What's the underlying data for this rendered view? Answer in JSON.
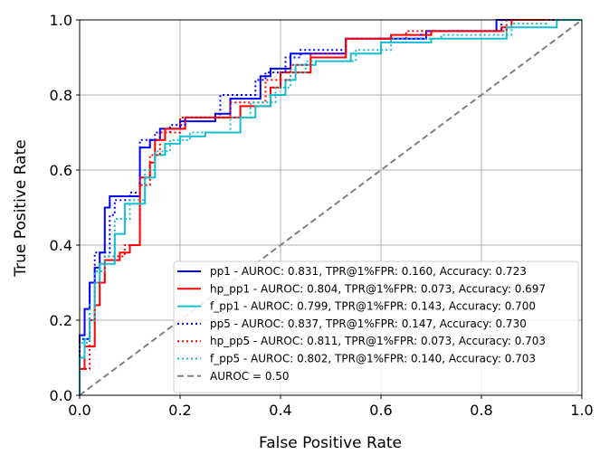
{
  "chart_data": {
    "type": "line",
    "title": "",
    "xlabel": "False Positive Rate",
    "ylabel": "True Positive Rate",
    "xlim": [
      0,
      1
    ],
    "ylim": [
      0,
      1
    ],
    "grid": true,
    "legend_location": "lower-right",
    "xticks": [
      "0.0",
      "0.2",
      "0.4",
      "0.6",
      "0.8",
      "1.0"
    ],
    "yticks": [
      "0.0",
      "0.2",
      "0.4",
      "0.6",
      "0.8",
      "1.0"
    ],
    "series": [
      {
        "name": "pp1 - AUROC: 0.831, TPR@1%FPR: 0.160, Accuracy: 0.723",
        "color": "#0000ff",
        "style": "solid",
        "points": [
          [
            0,
            0
          ],
          [
            0,
            0.16
          ],
          [
            0.01,
            0.16
          ],
          [
            0.01,
            0.23
          ],
          [
            0.02,
            0.23
          ],
          [
            0.02,
            0.3
          ],
          [
            0.03,
            0.3
          ],
          [
            0.03,
            0.34
          ],
          [
            0.04,
            0.34
          ],
          [
            0.04,
            0.38
          ],
          [
            0.05,
            0.38
          ],
          [
            0.05,
            0.5
          ],
          [
            0.06,
            0.5
          ],
          [
            0.06,
            0.53
          ],
          [
            0.12,
            0.53
          ],
          [
            0.12,
            0.66
          ],
          [
            0.14,
            0.66
          ],
          [
            0.14,
            0.68
          ],
          [
            0.16,
            0.68
          ],
          [
            0.16,
            0.71
          ],
          [
            0.2,
            0.71
          ],
          [
            0.2,
            0.73
          ],
          [
            0.27,
            0.73
          ],
          [
            0.27,
            0.75
          ],
          [
            0.3,
            0.75
          ],
          [
            0.3,
            0.79
          ],
          [
            0.36,
            0.79
          ],
          [
            0.36,
            0.85
          ],
          [
            0.38,
            0.85
          ],
          [
            0.38,
            0.87
          ],
          [
            0.42,
            0.87
          ],
          [
            0.42,
            0.91
          ],
          [
            0.53,
            0.91
          ],
          [
            0.53,
            0.95
          ],
          [
            0.69,
            0.95
          ],
          [
            0.69,
            0.97
          ],
          [
            0.83,
            0.97
          ],
          [
            0.83,
            1.0
          ],
          [
            1.0,
            1.0
          ]
        ]
      },
      {
        "name": "hp_pp1 - AUROC: 0.804, TPR@1%FPR: 0.073, Accuracy: 0.697",
        "color": "#ff0000",
        "style": "solid",
        "points": [
          [
            0,
            0
          ],
          [
            0,
            0.07
          ],
          [
            0.01,
            0.07
          ],
          [
            0.01,
            0.13
          ],
          [
            0.03,
            0.13
          ],
          [
            0.03,
            0.24
          ],
          [
            0.04,
            0.24
          ],
          [
            0.04,
            0.3
          ],
          [
            0.05,
            0.3
          ],
          [
            0.05,
            0.36
          ],
          [
            0.08,
            0.36
          ],
          [
            0.08,
            0.38
          ],
          [
            0.1,
            0.38
          ],
          [
            0.1,
            0.4
          ],
          [
            0.12,
            0.4
          ],
          [
            0.12,
            0.58
          ],
          [
            0.14,
            0.58
          ],
          [
            0.14,
            0.62
          ],
          [
            0.15,
            0.62
          ],
          [
            0.15,
            0.68
          ],
          [
            0.17,
            0.68
          ],
          [
            0.17,
            0.71
          ],
          [
            0.21,
            0.71
          ],
          [
            0.21,
            0.74
          ],
          [
            0.32,
            0.74
          ],
          [
            0.32,
            0.77
          ],
          [
            0.38,
            0.77
          ],
          [
            0.38,
            0.82
          ],
          [
            0.4,
            0.82
          ],
          [
            0.4,
            0.86
          ],
          [
            0.46,
            0.86
          ],
          [
            0.46,
            0.9
          ],
          [
            0.53,
            0.9
          ],
          [
            0.53,
            0.95
          ],
          [
            0.62,
            0.95
          ],
          [
            0.62,
            0.96
          ],
          [
            0.7,
            0.96
          ],
          [
            0.7,
            0.97
          ],
          [
            0.84,
            0.97
          ],
          [
            0.84,
            0.98
          ],
          [
            0.86,
            0.98
          ],
          [
            0.86,
            1.0
          ],
          [
            1.0,
            1.0
          ]
        ]
      },
      {
        "name": "f_pp1 - AUROC: 0.799, TPR@1%FPR: 0.143, Accuracy: 0.700",
        "color": "#17becf",
        "style": "solid",
        "points": [
          [
            0,
            0
          ],
          [
            0,
            0.1
          ],
          [
            0.01,
            0.1
          ],
          [
            0.01,
            0.15
          ],
          [
            0.02,
            0.15
          ],
          [
            0.02,
            0.2
          ],
          [
            0.03,
            0.2
          ],
          [
            0.03,
            0.3
          ],
          [
            0.04,
            0.3
          ],
          [
            0.04,
            0.35
          ],
          [
            0.07,
            0.35
          ],
          [
            0.07,
            0.43
          ],
          [
            0.09,
            0.43
          ],
          [
            0.09,
            0.51
          ],
          [
            0.13,
            0.51
          ],
          [
            0.13,
            0.58
          ],
          [
            0.15,
            0.58
          ],
          [
            0.15,
            0.64
          ],
          [
            0.17,
            0.64
          ],
          [
            0.17,
            0.67
          ],
          [
            0.2,
            0.67
          ],
          [
            0.2,
            0.69
          ],
          [
            0.25,
            0.69
          ],
          [
            0.25,
            0.7
          ],
          [
            0.32,
            0.7
          ],
          [
            0.32,
            0.74
          ],
          [
            0.35,
            0.74
          ],
          [
            0.35,
            0.77
          ],
          [
            0.38,
            0.77
          ],
          [
            0.38,
            0.8
          ],
          [
            0.41,
            0.8
          ],
          [
            0.41,
            0.84
          ],
          [
            0.43,
            0.84
          ],
          [
            0.43,
            0.88
          ],
          [
            0.47,
            0.88
          ],
          [
            0.47,
            0.89
          ],
          [
            0.54,
            0.89
          ],
          [
            0.54,
            0.91
          ],
          [
            0.6,
            0.91
          ],
          [
            0.6,
            0.94
          ],
          [
            0.7,
            0.94
          ],
          [
            0.7,
            0.95
          ],
          [
            0.85,
            0.95
          ],
          [
            0.85,
            0.98
          ],
          [
            0.95,
            0.98
          ],
          [
            0.95,
            1.0
          ],
          [
            1.0,
            1.0
          ]
        ]
      },
      {
        "name": "pp5 - AUROC: 0.837, TPR@1%FPR: 0.147, Accuracy: 0.730",
        "color": "#0000ff",
        "style": "dotted",
        "points": [
          [
            0,
            0
          ],
          [
            0,
            0.15
          ],
          [
            0.02,
            0.15
          ],
          [
            0.02,
            0.3
          ],
          [
            0.03,
            0.3
          ],
          [
            0.03,
            0.38
          ],
          [
            0.06,
            0.38
          ],
          [
            0.06,
            0.48
          ],
          [
            0.07,
            0.48
          ],
          [
            0.07,
            0.52
          ],
          [
            0.1,
            0.52
          ],
          [
            0.1,
            0.54
          ],
          [
            0.12,
            0.54
          ],
          [
            0.12,
            0.68
          ],
          [
            0.15,
            0.68
          ],
          [
            0.15,
            0.7
          ],
          [
            0.18,
            0.7
          ],
          [
            0.18,
            0.72
          ],
          [
            0.21,
            0.72
          ],
          [
            0.21,
            0.74
          ],
          [
            0.28,
            0.74
          ],
          [
            0.28,
            0.8
          ],
          [
            0.35,
            0.8
          ],
          [
            0.35,
            0.84
          ],
          [
            0.37,
            0.84
          ],
          [
            0.37,
            0.86
          ],
          [
            0.41,
            0.86
          ],
          [
            0.41,
            0.9
          ],
          [
            0.44,
            0.9
          ],
          [
            0.44,
            0.92
          ],
          [
            0.53,
            0.92
          ],
          [
            0.53,
            0.95
          ],
          [
            0.68,
            0.95
          ],
          [
            0.68,
            0.97
          ],
          [
            0.84,
            0.97
          ],
          [
            0.84,
            1.0
          ],
          [
            1.0,
            1.0
          ]
        ]
      },
      {
        "name": "hp_pp5 - AUROC: 0.811, TPR@1%FPR: 0.073, Accuracy: 0.703",
        "color": "#ff0000",
        "style": "dotted",
        "points": [
          [
            0,
            0
          ],
          [
            0,
            0.07
          ],
          [
            0.02,
            0.07
          ],
          [
            0.02,
            0.2
          ],
          [
            0.03,
            0.2
          ],
          [
            0.03,
            0.3
          ],
          [
            0.05,
            0.3
          ],
          [
            0.05,
            0.37
          ],
          [
            0.09,
            0.37
          ],
          [
            0.09,
            0.4
          ],
          [
            0.12,
            0.4
          ],
          [
            0.12,
            0.56
          ],
          [
            0.14,
            0.56
          ],
          [
            0.14,
            0.64
          ],
          [
            0.16,
            0.64
          ],
          [
            0.16,
            0.7
          ],
          [
            0.2,
            0.7
          ],
          [
            0.2,
            0.74
          ],
          [
            0.3,
            0.74
          ],
          [
            0.3,
            0.78
          ],
          [
            0.37,
            0.78
          ],
          [
            0.37,
            0.84
          ],
          [
            0.42,
            0.84
          ],
          [
            0.42,
            0.88
          ],
          [
            0.46,
            0.88
          ],
          [
            0.46,
            0.91
          ],
          [
            0.53,
            0.91
          ],
          [
            0.53,
            0.95
          ],
          [
            0.65,
            0.95
          ],
          [
            0.65,
            0.97
          ],
          [
            0.85,
            0.97
          ],
          [
            0.85,
            1.0
          ],
          [
            1.0,
            1.0
          ]
        ]
      },
      {
        "name": "f_pp5 - AUROC: 0.802, TPR@1%FPR: 0.140, Accuracy: 0.703",
        "color": "#17becf",
        "style": "dotted",
        "points": [
          [
            0,
            0
          ],
          [
            0,
            0.14
          ],
          [
            0.02,
            0.14
          ],
          [
            0.02,
            0.24
          ],
          [
            0.03,
            0.24
          ],
          [
            0.03,
            0.33
          ],
          [
            0.05,
            0.33
          ],
          [
            0.05,
            0.37
          ],
          [
            0.07,
            0.37
          ],
          [
            0.07,
            0.47
          ],
          [
            0.1,
            0.47
          ],
          [
            0.1,
            0.52
          ],
          [
            0.13,
            0.52
          ],
          [
            0.13,
            0.6
          ],
          [
            0.15,
            0.6
          ],
          [
            0.15,
            0.65
          ],
          [
            0.18,
            0.65
          ],
          [
            0.18,
            0.68
          ],
          [
            0.22,
            0.68
          ],
          [
            0.22,
            0.7
          ],
          [
            0.3,
            0.7
          ],
          [
            0.3,
            0.74
          ],
          [
            0.34,
            0.74
          ],
          [
            0.34,
            0.78
          ],
          [
            0.39,
            0.78
          ],
          [
            0.39,
            0.82
          ],
          [
            0.42,
            0.82
          ],
          [
            0.42,
            0.86
          ],
          [
            0.45,
            0.86
          ],
          [
            0.45,
            0.89
          ],
          [
            0.55,
            0.89
          ],
          [
            0.55,
            0.92
          ],
          [
            0.62,
            0.92
          ],
          [
            0.62,
            0.95
          ],
          [
            0.72,
            0.95
          ],
          [
            0.72,
            0.96
          ],
          [
            0.86,
            0.96
          ],
          [
            0.86,
            0.99
          ],
          [
            0.93,
            0.99
          ],
          [
            0.93,
            1.0
          ],
          [
            1.0,
            1.0
          ]
        ]
      },
      {
        "name": "AUROC = 0.50",
        "color": "#808080",
        "style": "dashed",
        "points": [
          [
            0,
            0
          ],
          [
            1,
            1
          ]
        ]
      }
    ]
  }
}
